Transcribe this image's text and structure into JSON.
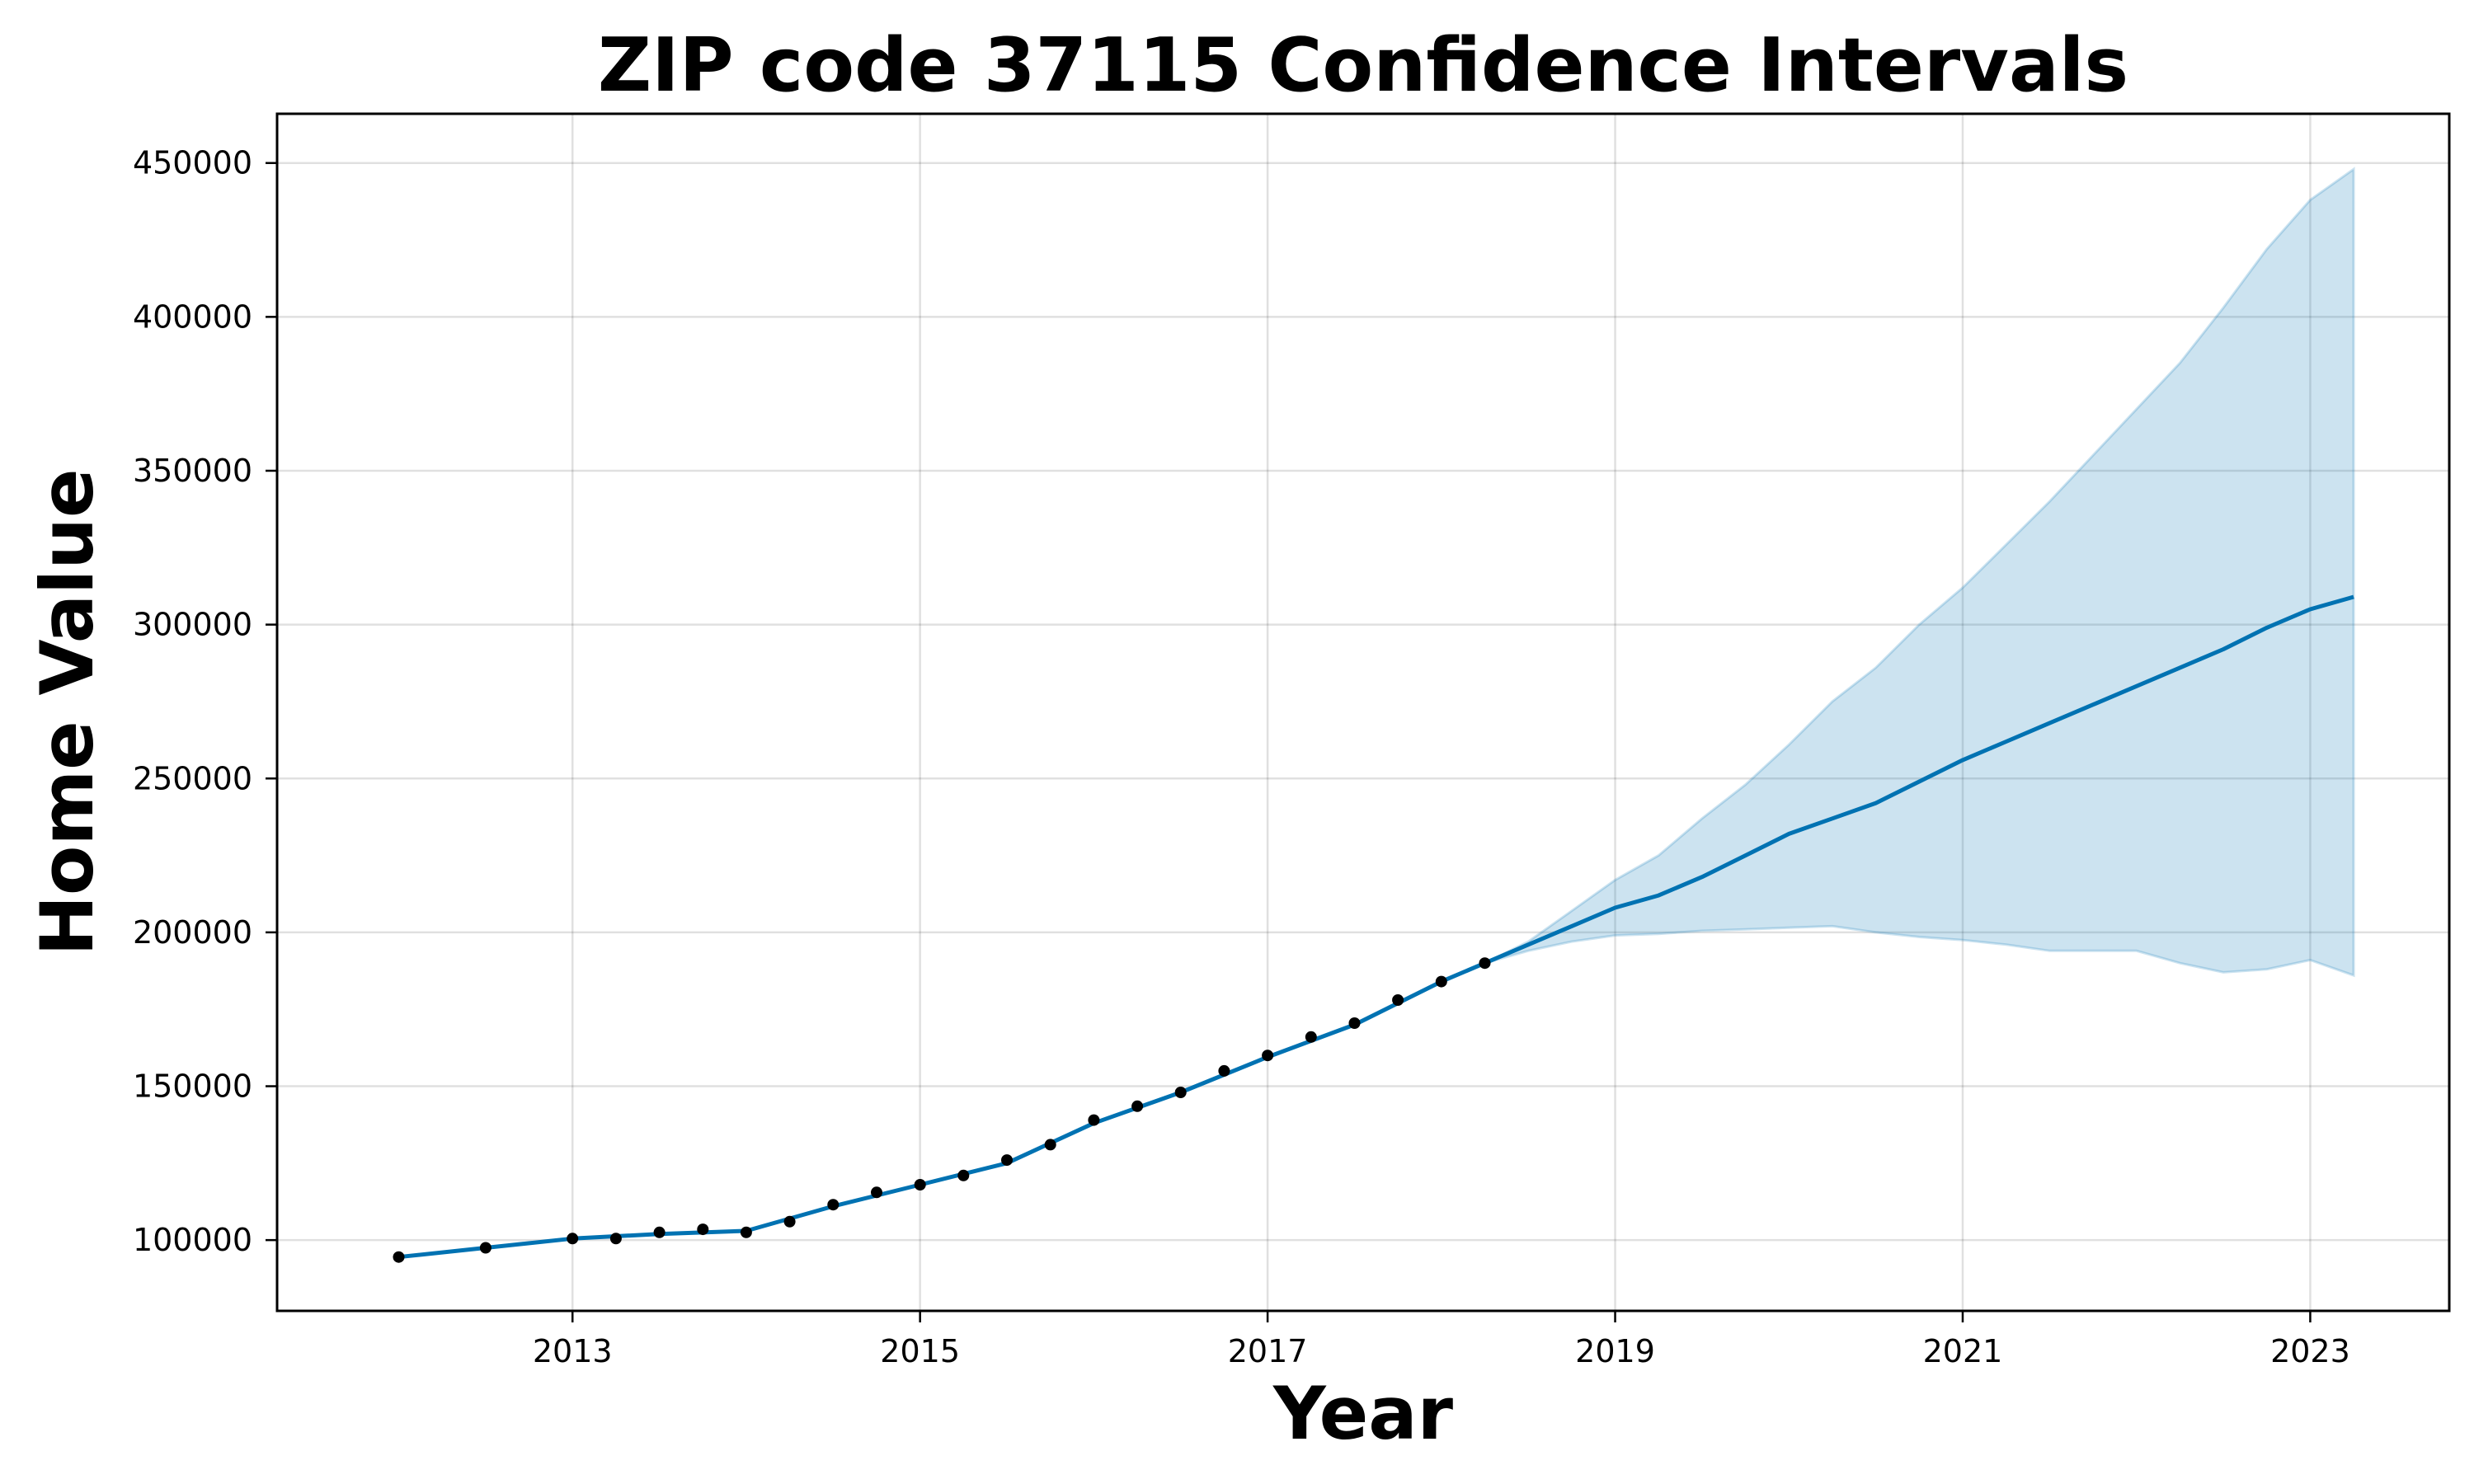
{
  "chart_data": {
    "type": "line",
    "title": "ZIP code 37115 Confidence Intervals",
    "xlabel": "Year",
    "ylabel": "Home Value",
    "xlim": [
      2011.3,
      2023.8
    ],
    "ylim": [
      77000,
      466000
    ],
    "x_ticks": [
      2013,
      2015,
      2017,
      2019,
      2021,
      2023
    ],
    "y_ticks": [
      100000,
      150000,
      200000,
      250000,
      300000,
      350000,
      400000,
      450000
    ],
    "grid": true,
    "colors": {
      "forecast_line": "#0072b2",
      "interval_fill": "#0072b2",
      "observed_points": "#000000"
    },
    "observed": {
      "x": [
        2012.0,
        2012.5,
        2013.0,
        2013.25,
        2013.5,
        2013.75,
        2014.0,
        2014.25,
        2014.5,
        2014.75,
        2015.0,
        2015.25,
        2015.5,
        2015.75,
        2016.0,
        2016.25,
        2016.5,
        2016.75,
        2017.0,
        2017.25,
        2017.5,
        2017.75,
        2018.0,
        2018.25
      ],
      "y": [
        94500,
        97500,
        100500,
        100500,
        102500,
        103500,
        102500,
        106000,
        111500,
        115500,
        118000,
        121000,
        126000,
        131000,
        139000,
        143500,
        148000,
        155000,
        160000,
        166000,
        170500,
        178000,
        184000,
        190000
      ]
    },
    "forecast": {
      "x": [
        2012.0,
        2012.5,
        2013.0,
        2013.5,
        2014.0,
        2014.5,
        2015.0,
        2015.5,
        2016.0,
        2016.5,
        2017.0,
        2017.5,
        2018.0,
        2018.25,
        2018.5,
        2018.75,
        2019.0,
        2019.25,
        2019.5,
        2019.75,
        2020.0,
        2020.25,
        2020.5,
        2020.75,
        2021.0,
        2021.25,
        2021.5,
        2021.75,
        2022.0,
        2022.25,
        2022.5,
        2022.75,
        2023.0,
        2023.25
      ],
      "y": [
        94500,
        97500,
        100500,
        102000,
        103000,
        111000,
        118000,
        125000,
        138000,
        148000,
        159500,
        170000,
        184000,
        190000,
        196000,
        202000,
        208000,
        212000,
        218000,
        225000,
        232000,
        237000,
        242000,
        249000,
        256000,
        262000,
        268000,
        274000,
        280000,
        286000,
        292000,
        299000,
        305000,
        309000
      ],
      "upper": [
        94500,
        97500,
        100500,
        102000,
        103000,
        111000,
        118000,
        125000,
        138000,
        148000,
        159500,
        170000,
        184000,
        190000,
        197000,
        207000,
        217000,
        225000,
        237000,
        248000,
        261000,
        275000,
        286000,
        300000,
        312000,
        326000,
        340000,
        355000,
        370000,
        385000,
        403000,
        422000,
        438000,
        448000
      ],
      "lower": [
        94500,
        97500,
        100500,
        102000,
        103000,
        111000,
        118000,
        125000,
        138000,
        148000,
        159500,
        170000,
        184000,
        190000,
        194000,
        197000,
        199000,
        199500,
        200500,
        201000,
        201500,
        202000,
        200000,
        198500,
        197500,
        196000,
        194000,
        194000,
        194000,
        190000,
        187000,
        188000,
        191000,
        186000
      ]
    }
  }
}
